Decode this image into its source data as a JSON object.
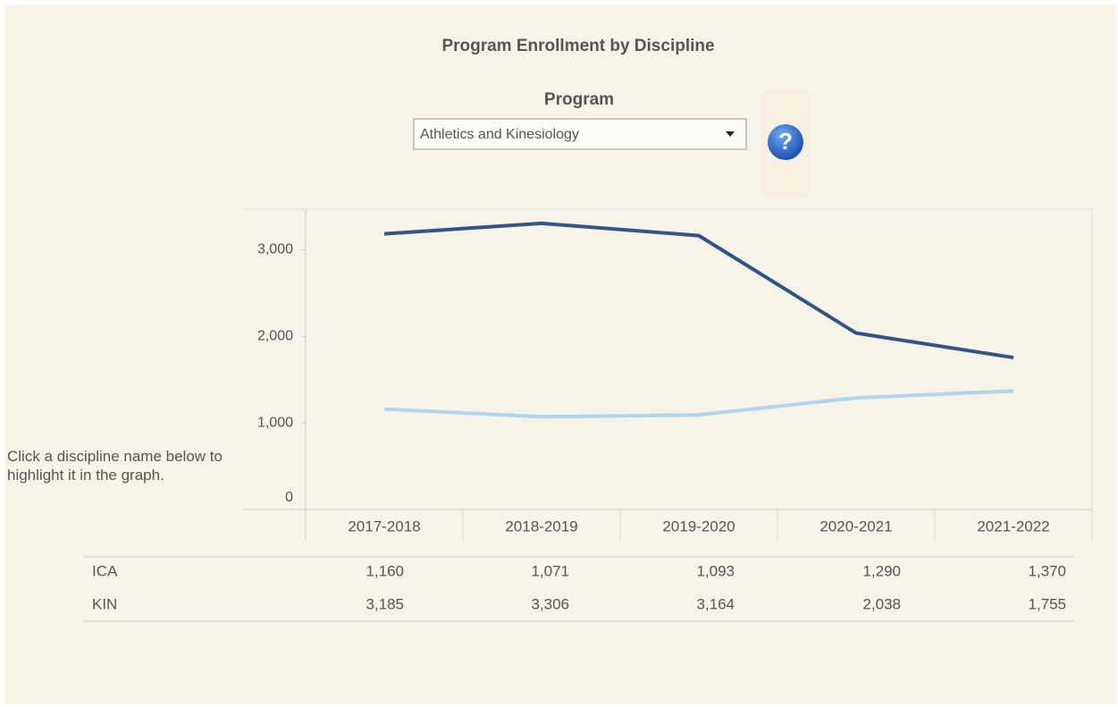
{
  "chart_data": {
    "type": "line",
    "title": "Program Enrollment by Discipline",
    "filter_label": "Program",
    "filter_value": "Athletics and Kinesiology",
    "instruction": "Click a discipline name below to highlight it in the graph.",
    "categories": [
      "2017-2018",
      "2018-2019",
      "2019-2020",
      "2020-2021",
      "2021-2022"
    ],
    "series": [
      {
        "name": "ICA",
        "color": "#aed4ee",
        "values": [
          1160,
          1071,
          1093,
          1290,
          1370
        ],
        "value_labels": [
          "1,160",
          "1,071",
          "1,093",
          "1,290",
          "1,370"
        ]
      },
      {
        "name": "KIN",
        "color": "#2f5684",
        "values": [
          3185,
          3306,
          3164,
          2038,
          1755
        ],
        "value_labels": [
          "3,185",
          "3,306",
          "3,164",
          "2,038",
          "1,755"
        ]
      }
    ],
    "ylim": [
      0,
      3470
    ],
    "yticks": [
      0,
      {
        "value": 1000,
        "label": "1,000"
      },
      {
        "value": 2000,
        "label": "2,000"
      },
      {
        "value": 3000,
        "label": "3,000"
      }
    ]
  }
}
